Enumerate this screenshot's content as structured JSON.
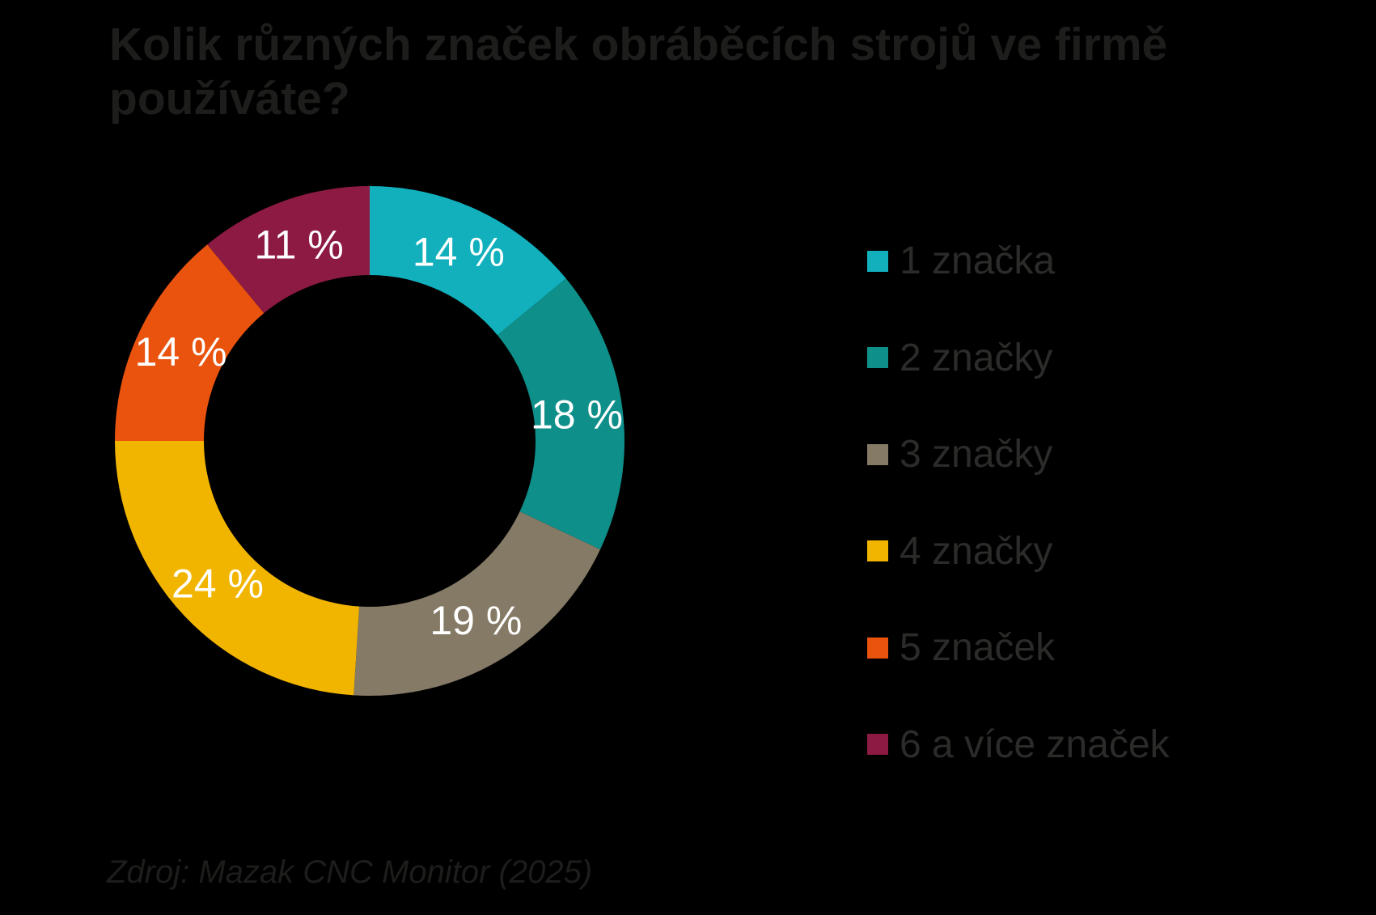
{
  "page": {
    "title": "Kolik různých značek obráběcích strojů ve firmě používáte?",
    "source": "Zdroj: Mazak CNC Monitor (2025)"
  },
  "colors": {
    "background": "#000000",
    "title_text": "#1d1d1b",
    "legend_text": "#2b2b29",
    "segment_label_text": "#ffffff"
  },
  "chart_data": {
    "type": "pie",
    "subtype": "donut",
    "title": "Kolik různých značek obráběcích strojů ve firmě používáte?",
    "categories": [
      "1 značka",
      "2 značky",
      "3 značky",
      "4 značky",
      "5 značek",
      "6 a více značek"
    ],
    "values": [
      14,
      18,
      19,
      24,
      14,
      11
    ],
    "unit": "%",
    "data_labels": [
      "14 %",
      "18 %",
      "19 %",
      "24 %",
      "14 %",
      "11 %"
    ],
    "colors": [
      "#12b0bd",
      "#0e8f8a",
      "#847a66",
      "#f1b500",
      "#e9530e",
      "#8d1a43"
    ],
    "start_angle_deg": 0,
    "direction": "clockwise",
    "donut_hole_ratio": 0.65,
    "legend_position": "right",
    "source": "Zdroj: Mazak CNC Monitor (2025)"
  }
}
